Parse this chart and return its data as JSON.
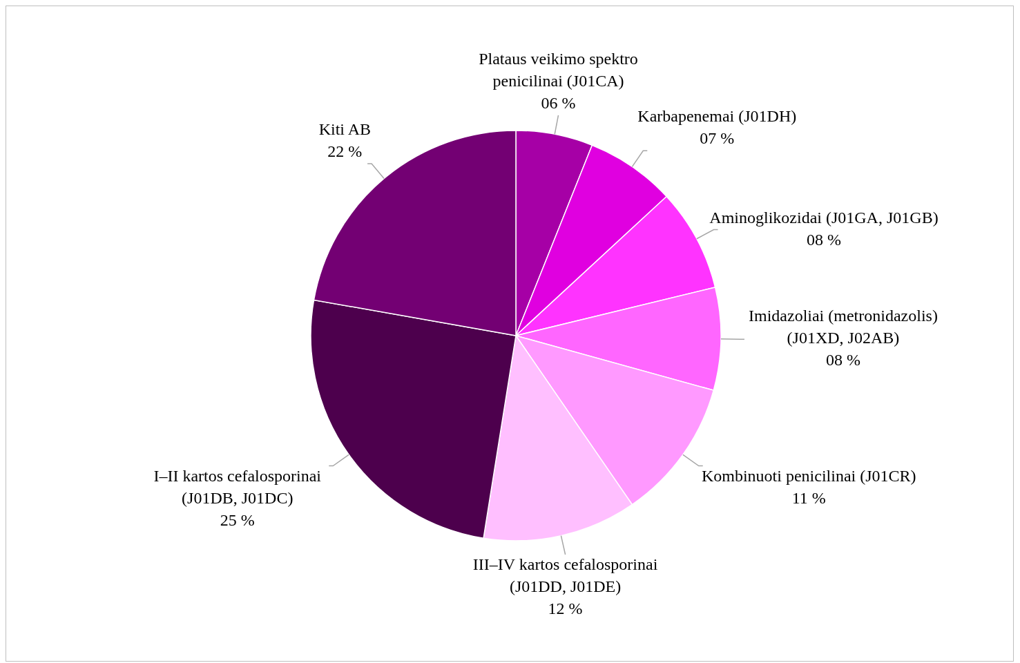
{
  "chart_data": {
    "type": "pie",
    "categories": [
      "Plataus veikimo spektro penicilinai (J01CA)",
      "Karbapenemai (J01DH)",
      "Aminoglikozidai (J01GA, J01GB)",
      "Imidazoliai (metronidazolis) (J01XD, J02AB)",
      "Kombinuoti penicilinai (J01CR)",
      "III–IV kartos cefalosporinai (J01DD, J01DE)",
      "I–II kartos cefalosporinai (J01DB, J01DC)",
      "Kiti AB"
    ],
    "values": [
      6,
      7,
      8,
      8,
      11,
      12,
      25,
      22
    ],
    "value_labels": [
      "06 %",
      "07 %",
      "08 %",
      "08 %",
      "11 %",
      "12 %",
      "25 %",
      "22 %"
    ],
    "colors": [
      "#a600a6",
      "#e000e0",
      "#ff33ff",
      "#ff66ff",
      "#ff99ff",
      "#ffbfff",
      "#4d004d",
      "#730073"
    ]
  }
}
